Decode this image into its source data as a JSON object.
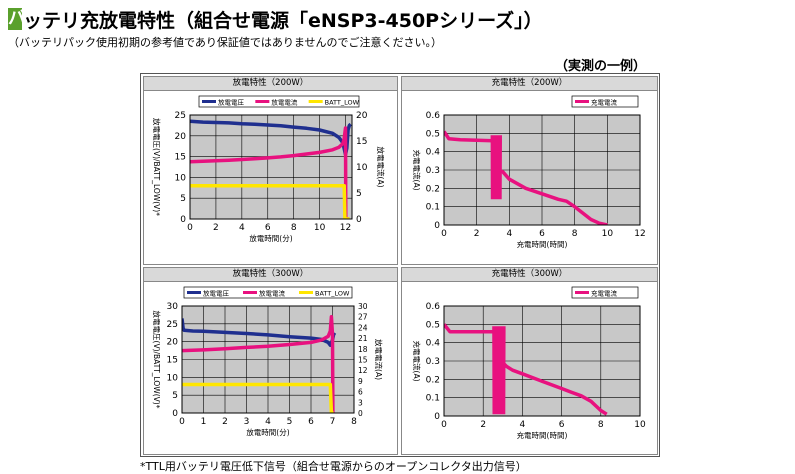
{
  "header": {
    "title_mark": "バ",
    "title_rest": "ッテリ充放電特性（組合せ電源「eNSP3-450Pシリーズ」）",
    "subtitle": "（バッテリパック使用初期の参考値であり保証値ではありませんのでご注意ください。）",
    "example_note": "（実測の一例）"
  },
  "footnote": "*TTL用バッテリ電圧低下信号（組合せ電源からのオープンコレクタ出力信号）",
  "colors": {
    "voltage": "#1f2f8f",
    "current": "#e8117f",
    "batt_low": "#ffe600",
    "plot_bg": "#c8c8c8",
    "grid": "#000000"
  },
  "chart_data": [
    {
      "panel_title": "放電特性（200W）",
      "type": "line",
      "xlabel": "放電時間(分)",
      "ylabel": "放電電圧(V)/BATT_LOW(V)*",
      "y2label": "放電電流(A)",
      "xlim": [
        0,
        12.5
      ],
      "xticks": [
        "0",
        "2",
        "4",
        "6",
        "8",
        "10",
        "12"
      ],
      "ylim": [
        0,
        25
      ],
      "yticks": [
        "0",
        "5",
        "10",
        "15",
        "20",
        "25"
      ],
      "y2lim": [
        0,
        20
      ],
      "y2ticks": [
        "0",
        "5",
        "10",
        "15",
        "20"
      ],
      "legend": [
        "放電電圧",
        "放電電流",
        "BATT_LOW"
      ],
      "series": [
        {
          "name": "放電電圧",
          "axis": "left",
          "x": [
            0,
            1,
            2,
            3,
            4,
            5,
            6,
            7,
            8,
            9,
            10,
            11,
            11.5,
            11.8,
            12.0,
            12.1,
            12.2,
            12.3,
            12.4
          ],
          "values": [
            23.5,
            23.3,
            23.2,
            23.1,
            22.9,
            22.8,
            22.6,
            22.4,
            22.1,
            21.8,
            21.4,
            20.6,
            19.6,
            18.3,
            15.5,
            17.0,
            21.5,
            22.5,
            22.8
          ]
        },
        {
          "name": "放電電流",
          "axis": "right",
          "x": [
            0,
            1,
            2,
            3,
            4,
            5,
            6,
            7,
            8,
            9,
            10,
            11,
            11.5,
            11.8,
            11.9,
            12.0,
            12.02,
            12.05,
            12.3
          ],
          "values": [
            11.0,
            11.1,
            11.2,
            11.3,
            11.45,
            11.6,
            11.75,
            11.95,
            12.2,
            12.5,
            12.8,
            13.3,
            13.8,
            14.5,
            15.5,
            17.5,
            0,
            0,
            0
          ]
        },
        {
          "name": "BATT_LOW",
          "axis": "left",
          "x": [
            0,
            11.9,
            11.95,
            12.3
          ],
          "values": [
            8,
            8,
            0,
            0
          ]
        }
      ]
    },
    {
      "panel_title": "充電特性（200W）",
      "type": "line",
      "xlabel": "充電時間(時間)",
      "ylabel": "充電電流(A)",
      "xlim": [
        0,
        12
      ],
      "xticks": [
        "0",
        "2",
        "4",
        "6",
        "8",
        "10",
        "12"
      ],
      "ylim": [
        0,
        0.6
      ],
      "yticks": [
        "0",
        "0.1",
        "0.2",
        "0.3",
        "0.4",
        "0.5",
        "0.6"
      ],
      "legend": [
        "充電電流"
      ],
      "series": [
        {
          "name": "充電電流",
          "x": [
            0,
            0.3,
            1,
            2,
            3,
            3.1,
            3.6,
            4,
            5,
            6,
            7,
            7.5,
            8,
            9,
            9.5,
            10
          ],
          "values": [
            0.51,
            0.47,
            0.465,
            0.462,
            0.46,
            0.3,
            0.29,
            0.25,
            0.2,
            0.17,
            0.14,
            0.13,
            0.1,
            0.03,
            0.01,
            0
          ],
          "noise_band": {
            "x_from": 2.9,
            "x_to": 3.5,
            "low": 0.14,
            "high": 0.49
          }
        }
      ]
    },
    {
      "panel_title": "放電特性（300W）",
      "type": "line",
      "xlabel": "放電時間(分)",
      "ylabel": "放電電圧(V)/BATT_LOW(V)*",
      "y2label": "放電電流(A)",
      "xlim": [
        0,
        8
      ],
      "xticks": [
        "0",
        "1",
        "2",
        "3",
        "4",
        "5",
        "6",
        "7",
        "8"
      ],
      "ylim": [
        0,
        30
      ],
      "yticks": [
        "0",
        "5",
        "10",
        "15",
        "20",
        "25",
        "30"
      ],
      "y2lim": [
        0,
        30
      ],
      "y2ticks": [
        "0",
        "3",
        "6",
        "9",
        "12",
        "15",
        "18",
        "21",
        "24",
        "27",
        "30"
      ],
      "legend": [
        "放電電圧",
        "放電電流",
        "BATT_LOW"
      ],
      "series": [
        {
          "name": "放電電圧",
          "axis": "left",
          "x": [
            0,
            0.05,
            0.1,
            0.5,
            1,
            2,
            3,
            4,
            5,
            6,
            6.5,
            6.8,
            6.9,
            7.0,
            7.05,
            7.1
          ],
          "values": [
            26.5,
            23.8,
            23.2,
            23.0,
            22.9,
            22.6,
            22.3,
            21.9,
            21.4,
            21.0,
            20.6,
            19.8,
            19.0,
            20.5,
            22.0,
            22.5
          ]
        },
        {
          "name": "放電電流",
          "axis": "right",
          "x": [
            0,
            1,
            2,
            3,
            4,
            5,
            6,
            6.5,
            6.8,
            6.9,
            6.95,
            7.0,
            7.02,
            7.05
          ],
          "values": [
            17.5,
            17.7,
            18.0,
            18.4,
            18.7,
            19.2,
            19.8,
            20.5,
            21.5,
            23,
            27,
            22,
            0,
            0
          ]
        },
        {
          "name": "BATT_LOW",
          "axis": "left",
          "x": [
            0,
            6.9,
            6.95,
            7.05
          ],
          "values": [
            8,
            8,
            0,
            0
          ]
        }
      ]
    },
    {
      "panel_title": "充電特性（300W）",
      "type": "line",
      "xlabel": "充電時間(時間)",
      "ylabel": "充電電流(A)",
      "xlim": [
        0,
        10
      ],
      "xticks": [
        "0",
        "2",
        "4",
        "6",
        "8",
        "10"
      ],
      "ylim": [
        0,
        0.6
      ],
      "yticks": [
        "0",
        "0.1",
        "0.2",
        "0.3",
        "0.4",
        "0.5",
        "0.6"
      ],
      "legend": [
        "充電電流"
      ],
      "series": [
        {
          "name": "充電電流",
          "x": [
            0,
            0.3,
            1,
            2,
            2.6,
            2.7,
            3.0,
            3.2,
            3.5,
            4,
            5,
            6,
            6.5,
            7,
            7.5,
            8,
            8.3
          ],
          "values": [
            0.5,
            0.46,
            0.46,
            0.46,
            0.46,
            0.3,
            0.29,
            0.27,
            0.25,
            0.23,
            0.19,
            0.15,
            0.13,
            0.11,
            0.08,
            0.03,
            0.01
          ],
          "noise_band": {
            "x_from": 2.5,
            "x_to": 3.1,
            "low": 0.01,
            "high": 0.49
          }
        }
      ]
    }
  ]
}
